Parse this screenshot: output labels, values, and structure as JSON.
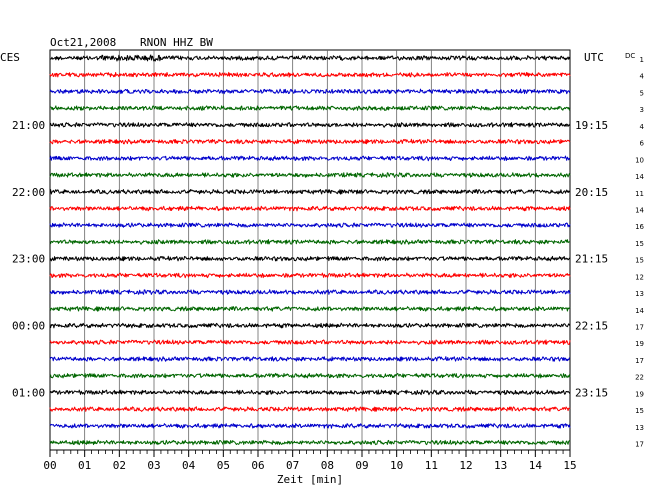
{
  "header": {
    "date": "Oct21,2008",
    "station": "RNON HHZ BW",
    "left_timezone": "CES",
    "right_timezone": "UTC",
    "dc_label": "DC"
  },
  "chart_data": {
    "type": "line",
    "title": "Oct21,2008  RNON HHZ BW",
    "xlabel": "Zeit [min]",
    "xlim": [
      0,
      15
    ],
    "x_ticks": [
      "00",
      "01",
      "02",
      "03",
      "04",
      "05",
      "06",
      "07",
      "08",
      "09",
      "10",
      "11",
      "12",
      "13",
      "14",
      "15"
    ],
    "trace_colors": [
      "#000000",
      "#ff0000",
      "#0000cc",
      "#006600"
    ],
    "left_time_labels": [
      {
        "row": 4,
        "label": "21:00"
      },
      {
        "row": 8,
        "label": "22:00"
      },
      {
        "row": 12,
        "label": "23:00"
      },
      {
        "row": 16,
        "label": "00:00"
      },
      {
        "row": 20,
        "label": "01:00"
      }
    ],
    "right_time_labels": [
      {
        "row": 4,
        "label": "19:15"
      },
      {
        "row": 8,
        "label": "20:15"
      },
      {
        "row": 12,
        "label": "21:15"
      },
      {
        "row": 16,
        "label": "22:15"
      },
      {
        "row": 20,
        "label": "23:15"
      }
    ],
    "dc_values": [
      1,
      4,
      5,
      3,
      4,
      6,
      10,
      14,
      11,
      14,
      16,
      15,
      15,
      12,
      13,
      14,
      17,
      19,
      17,
      22,
      19,
      15,
      13,
      17
    ],
    "row_count": 24
  }
}
